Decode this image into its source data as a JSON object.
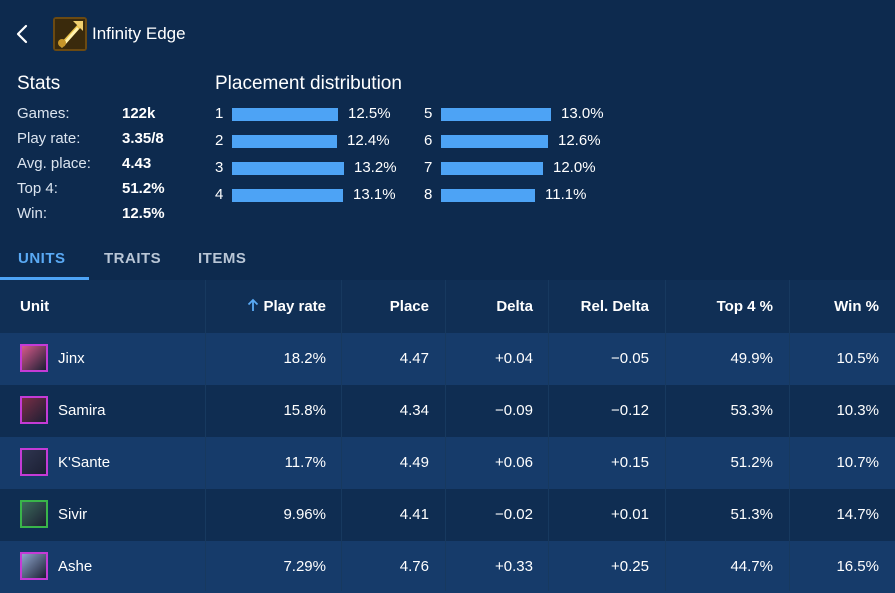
{
  "header": {
    "title": "Infinity Edge",
    "item_icon": "infinity-edge-sword-icon",
    "back_icon": "chevron-left-icon"
  },
  "stats": {
    "title": "Stats",
    "rows": [
      {
        "label": "Games:",
        "value": "122k"
      },
      {
        "label": "Play rate:",
        "value": "3.35/8"
      },
      {
        "label": "Avg. place:",
        "value": "4.43"
      },
      {
        "label": "Top 4:",
        "value": "51.2%"
      },
      {
        "label": "Win:",
        "value": "12.5%"
      }
    ]
  },
  "placement": {
    "title": "Placement distribution",
    "rows": [
      {
        "place": "1",
        "pct": "12.5%",
        "value": 12.5
      },
      {
        "place": "2",
        "pct": "12.4%",
        "value": 12.4
      },
      {
        "place": "3",
        "pct": "13.2%",
        "value": 13.2
      },
      {
        "place": "4",
        "pct": "13.1%",
        "value": 13.1
      },
      {
        "place": "5",
        "pct": "13.0%",
        "value": 13.0
      },
      {
        "place": "6",
        "pct": "12.6%",
        "value": 12.6
      },
      {
        "place": "7",
        "pct": "12.0%",
        "value": 12.0
      },
      {
        "place": "8",
        "pct": "11.1%",
        "value": 11.1
      }
    ],
    "bar_color": "#4da3f5"
  },
  "tabs": [
    {
      "label": "UNITS",
      "active": true
    },
    {
      "label": "TRAITS",
      "active": false
    },
    {
      "label": "ITEMS",
      "active": false
    }
  ],
  "table": {
    "columns": [
      "Unit",
      "Play rate",
      "Place",
      "Delta",
      "Rel. Delta",
      "Top 4 %",
      "Win %"
    ],
    "sort_icon": "arrow-up-icon",
    "rows": [
      {
        "unit": "Jinx",
        "play_rate": "18.2%",
        "place": "4.47",
        "delta": "+0.04",
        "rel_delta": "−0.05",
        "top4": "49.9%",
        "win": "10.5%",
        "border": "#c43bd6",
        "fill": "#d85a8a"
      },
      {
        "unit": "Samira",
        "play_rate": "15.8%",
        "place": "4.34",
        "delta": "−0.09",
        "rel_delta": "−0.12",
        "top4": "53.3%",
        "win": "10.3%",
        "border": "#c43bd6",
        "fill": "#7a2e46"
      },
      {
        "unit": "K'Sante",
        "play_rate": "11.7%",
        "place": "4.49",
        "delta": "+0.06",
        "rel_delta": "+0.15",
        "top4": "51.2%",
        "win": "10.7%",
        "border": "#c43bd6",
        "fill": "#2f3550"
      },
      {
        "unit": "Sivir",
        "play_rate": "9.96%",
        "place": "4.41",
        "delta": "−0.02",
        "rel_delta": "+0.01",
        "top4": "51.3%",
        "win": "14.7%",
        "border": "#39b54a",
        "fill": "#3c6a5a"
      },
      {
        "unit": "Ashe",
        "play_rate": "7.29%",
        "place": "4.76",
        "delta": "+0.33",
        "rel_delta": "+0.25",
        "top4": "44.7%",
        "win": "16.5%",
        "border": "#c43bd6",
        "fill": "#8fa6cc"
      }
    ]
  }
}
